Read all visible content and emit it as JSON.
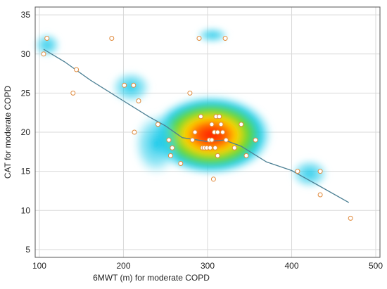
{
  "chart_data": {
    "type": "scatter",
    "xlabel": "6MWT (m) for moderate COPD",
    "ylabel": "CAT for moderate COPD",
    "xlim": [
      95,
      505
    ],
    "ylim": [
      4,
      36
    ],
    "x_ticks": [
      "100",
      "200",
      "300",
      "400",
      "500"
    ],
    "y_ticks": [
      "5",
      "10",
      "15",
      "20",
      "25",
      "30",
      "35"
    ],
    "grid": true,
    "background": "heat density map of points",
    "series": [
      {
        "points": [
          {
            "x": 105,
            "y": 30
          },
          {
            "x": 109,
            "y": 32
          },
          {
            "x": 140,
            "y": 25
          },
          {
            "x": 144,
            "y": 28
          },
          {
            "x": 186,
            "y": 32
          },
          {
            "x": 201,
            "y": 26
          },
          {
            "x": 212,
            "y": 26
          },
          {
            "x": 213,
            "y": 20
          },
          {
            "x": 218,
            "y": 24
          },
          {
            "x": 241,
            "y": 21
          },
          {
            "x": 254,
            "y": 19
          },
          {
            "x": 256,
            "y": 17
          },
          {
            "x": 258,
            "y": 18
          },
          {
            "x": 268,
            "y": 16
          },
          {
            "x": 279,
            "y": 25
          },
          {
            "x": 282,
            "y": 19
          },
          {
            "x": 285,
            "y": 20
          },
          {
            "x": 290,
            "y": 32
          },
          {
            "x": 292,
            "y": 22
          },
          {
            "x": 294,
            "y": 18
          },
          {
            "x": 296,
            "y": 18
          },
          {
            "x": 299,
            "y": 18
          },
          {
            "x": 302,
            "y": 19
          },
          {
            "x": 303,
            "y": 18
          },
          {
            "x": 305,
            "y": 19
          },
          {
            "x": 305,
            "y": 21
          },
          {
            "x": 307,
            "y": 14
          },
          {
            "x": 308,
            "y": 20
          },
          {
            "x": 309,
            "y": 18
          },
          {
            "x": 310,
            "y": 22
          },
          {
            "x": 312,
            "y": 20
          },
          {
            "x": 312,
            "y": 17
          },
          {
            "x": 314,
            "y": 22
          },
          {
            "x": 316,
            "y": 21
          },
          {
            "x": 318,
            "y": 20
          },
          {
            "x": 321,
            "y": 32
          },
          {
            "x": 322,
            "y": 19
          },
          {
            "x": 332,
            "y": 18
          },
          {
            "x": 340,
            "y": 21
          },
          {
            "x": 346,
            "y": 17
          },
          {
            "x": 357,
            "y": 19
          },
          {
            "x": 407,
            "y": 15
          },
          {
            "x": 434,
            "y": 12
          },
          {
            "x": 434,
            "y": 15
          },
          {
            "x": 470,
            "y": 9
          }
        ]
      }
    ],
    "trend": {
      "type": "line",
      "color": "#4b7f93",
      "x": [
        105,
        130,
        160,
        200,
        230,
        250,
        270,
        300,
        320,
        340,
        370,
        400,
        430,
        468
      ],
      "y": [
        30.6,
        29,
        26.7,
        24,
        22,
        20.8,
        19.3,
        18.8,
        19,
        18.2,
        16.2,
        15.1,
        13.3,
        11
      ]
    },
    "colors": {
      "marker_edge": "#e08a3c",
      "marker_fill": "#ffffff",
      "grid": "#d9d9d9",
      "axis": "#555555"
    }
  }
}
